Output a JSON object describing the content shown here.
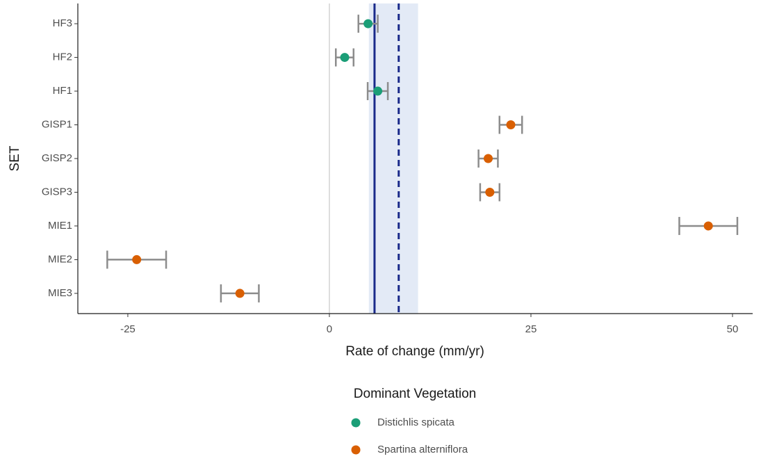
{
  "chart_data": {
    "type": "dot_errorbar",
    "x_label": "Rate of change (mm/yr)",
    "y_label": "SET",
    "categories": [
      "HF3",
      "HF2",
      "HF1",
      "GISP1",
      "GISP2",
      "GISP3",
      "MIE1",
      "MIE2",
      "MIE3"
    ],
    "series": [
      {
        "name": "Distichlis spicata",
        "color": "#1b9e77",
        "values": [
          4.8,
          1.9,
          6.0,
          null,
          null,
          null,
          null,
          null,
          null
        ],
        "errors": [
          1.2,
          1.1,
          1.25,
          null,
          null,
          null,
          null,
          null,
          null
        ]
      },
      {
        "name": "Spartina alterniflora",
        "color": "#d95f02",
        "values": [
          null,
          null,
          null,
          22.5,
          19.7,
          19.9,
          47.0,
          -23.9,
          -11.1
        ],
        "errors": [
          null,
          null,
          null,
          1.4,
          1.2,
          1.2,
          3.6,
          3.65,
          2.35
        ]
      }
    ],
    "errorbar_color": "#8c8c8c",
    "reference_lines": [
      {
        "value": 0,
        "color": "#bdbdbd",
        "style": "solid"
      },
      {
        "value": 5.6,
        "color": "#1a2a8a",
        "style": "solid"
      },
      {
        "value": 8.6,
        "color": "#1a2a8a",
        "style": "dashed"
      }
    ],
    "band": {
      "range": [
        4.9,
        11.0
      ],
      "color": "#e3eaf6"
    },
    "xlim": [
      -31.2,
      52.5
    ],
    "xticks": [
      -25,
      0,
      25,
      50
    ],
    "legend_title": "Dominant Vegetation",
    "legend_position": "bottom"
  }
}
